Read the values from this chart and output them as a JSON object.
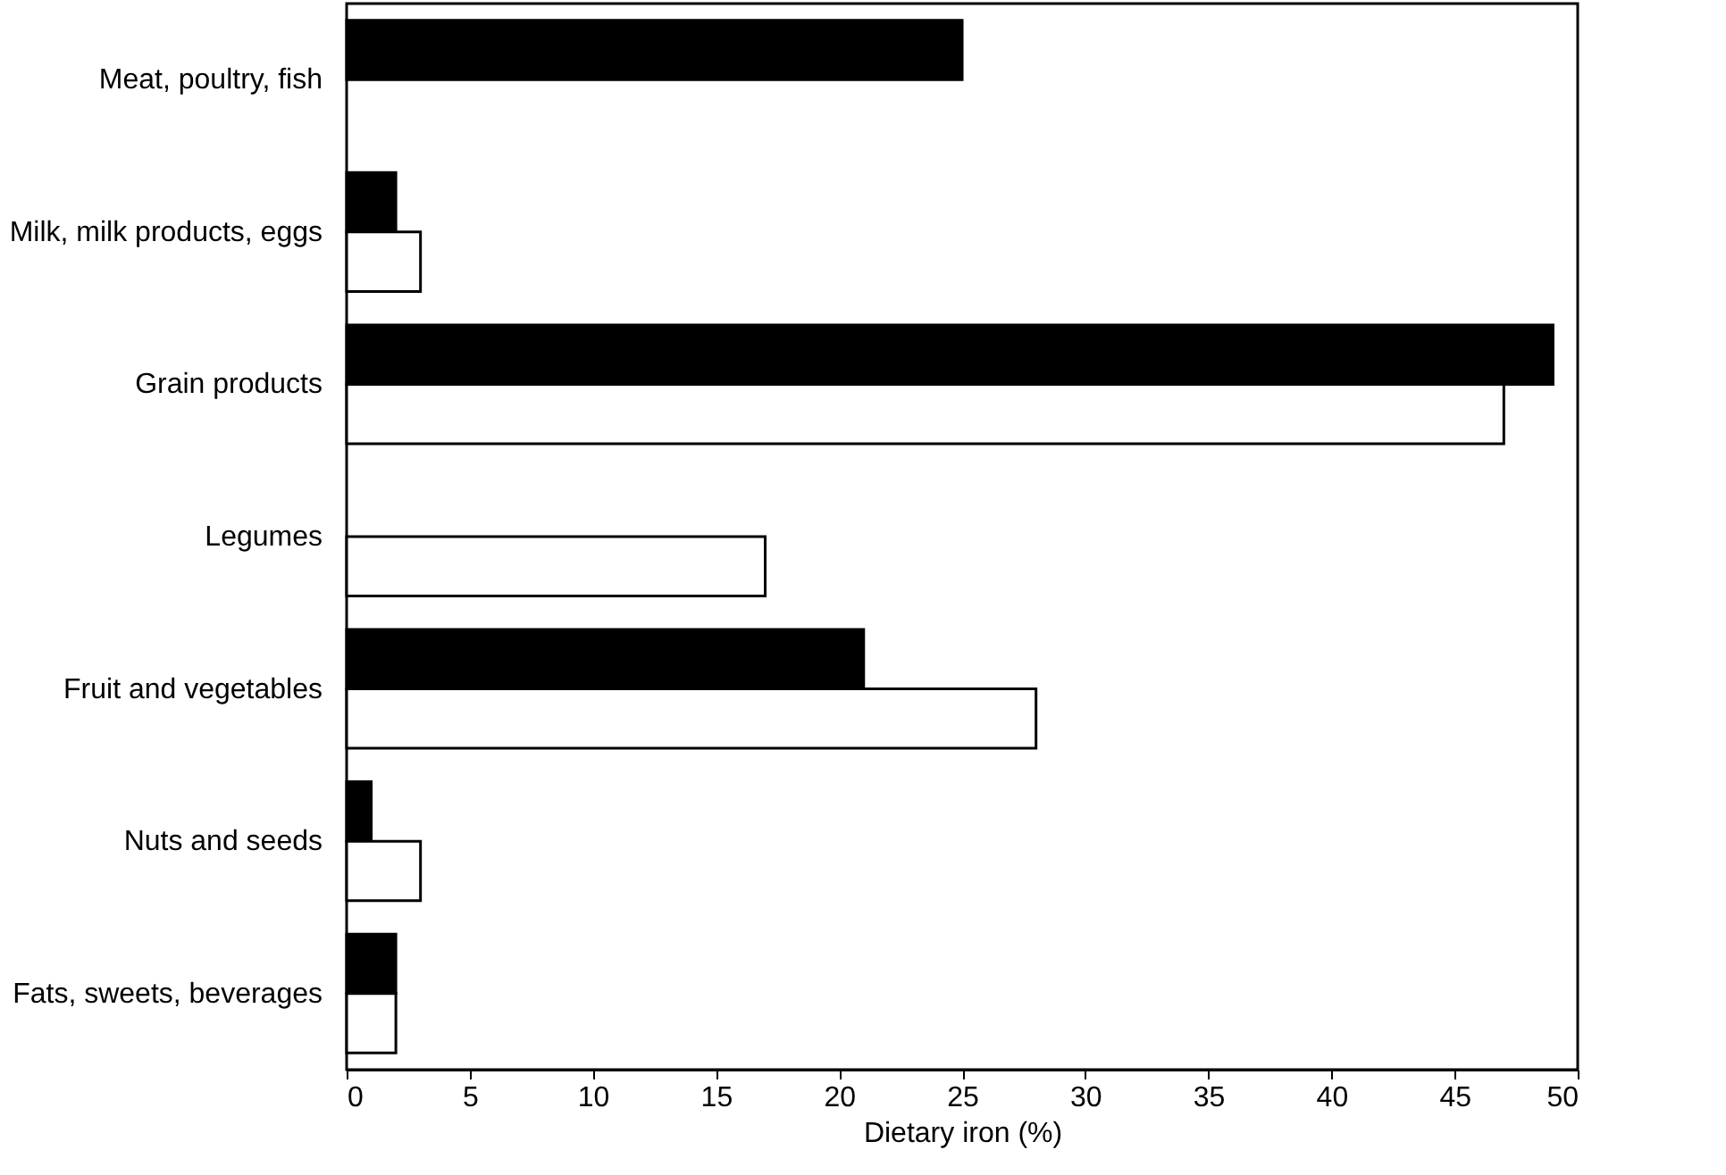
{
  "chart_data": {
    "type": "bar",
    "orientation": "horizontal",
    "xlabel": "Dietary iron (%)",
    "categories": [
      "Meat, poultry, fish",
      "Milk, milk products, eggs",
      "Grain products",
      "Legumes",
      "Fruit  and vegetables",
      "Nuts and seeds",
      "Fats, sweets, beverages"
    ],
    "series": [
      {
        "color": "#000000",
        "values": [
          25,
          2,
          49,
          null,
          21,
          1,
          2
        ]
      },
      {
        "color": "#ffffff",
        "values": [
          null,
          3,
          47,
          17,
          28,
          3,
          2
        ]
      }
    ],
    "xlim": [
      0,
      50
    ],
    "xticks": [
      0,
      5,
      10,
      15,
      20,
      25,
      30,
      35,
      40,
      45,
      50
    ],
    "grid": false,
    "legend": false
  }
}
